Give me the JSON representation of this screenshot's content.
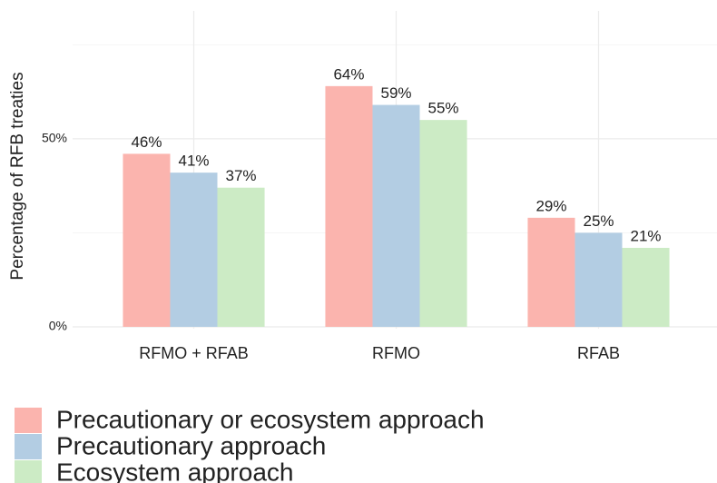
{
  "chart_data": {
    "type": "bar",
    "y_label": "Percentage of RFB treaties",
    "categories": [
      "RFMO + RFAB",
      "RFMO",
      "RFAB"
    ],
    "series": [
      {
        "name": "Precautionary or ecosystem approach",
        "color": "#fbb4ae",
        "values": [
          46,
          64,
          29
        ],
        "value_labels": [
          "46%",
          "64%",
          "29%"
        ]
      },
      {
        "name": "Precautionary approach",
        "color": "#b3cde3",
        "values": [
          41,
          59,
          25
        ],
        "value_labels": [
          "41%",
          "59%",
          "25%"
        ]
      },
      {
        "name": "Ecosystem approach",
        "color": "#ccebc5",
        "values": [
          37,
          55,
          21
        ],
        "value_labels": [
          "37%",
          "55%",
          "21%"
        ]
      }
    ],
    "ylim": [
      0,
      84
    ],
    "yticks": [
      {
        "value": 0,
        "label": "0%"
      },
      {
        "value": 50,
        "label": "50%"
      }
    ],
    "minor_yticks": [
      25,
      75
    ],
    "grid": true,
    "legend": "bottom"
  }
}
